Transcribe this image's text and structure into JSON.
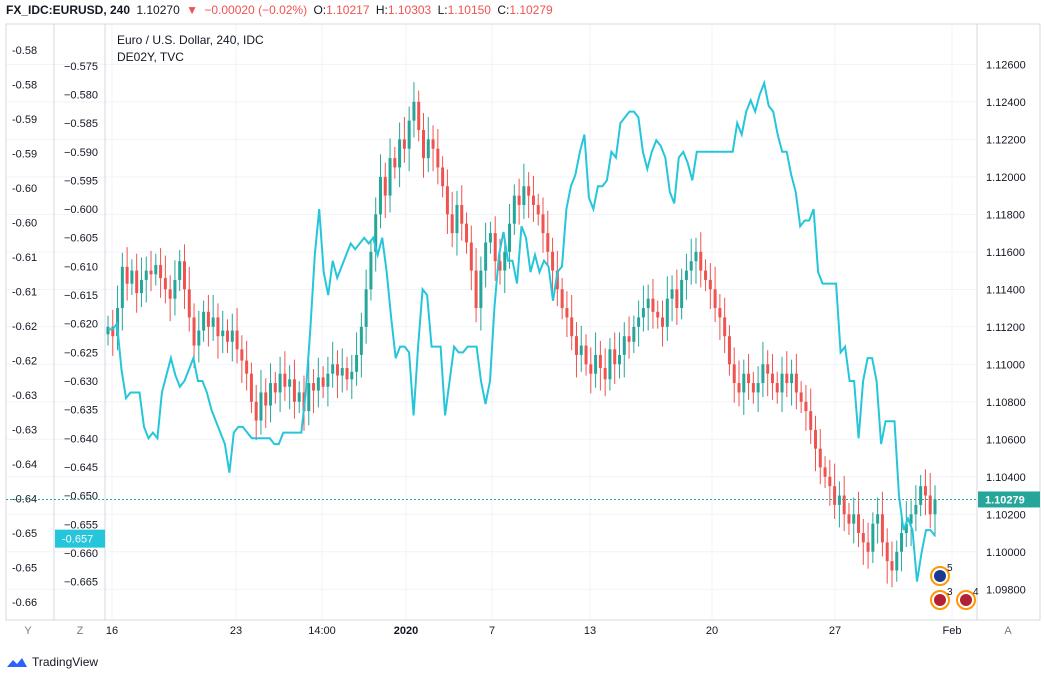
{
  "header": {
    "symbol": "FX_IDC:EURUSD, 240",
    "last": "1.10270",
    "arrow": "▼",
    "change": "−0.00020 (−0.02%)",
    "o_label": "O:",
    "o_value": "1.10217",
    "h_label": "H:",
    "h_value": "1.10303",
    "l_label": "L:",
    "l_value": "1.10150",
    "c_label": "C:",
    "c_value": "1.10279"
  },
  "legend": {
    "main": "Euro / U.S. Dollar, 240, IDC",
    "overlay": "DE02Y, TVC"
  },
  "colors": {
    "up": "#26a69a",
    "down": "#ef5350",
    "overlay": "#26c6da",
    "price_badge": "#26a69a",
    "left_badge": "#26c6da",
    "grid": "#f0f3fa"
  },
  "footer": {
    "brand": "TradingView"
  },
  "axis_buttons": {
    "y": "Y",
    "z": "Z",
    "a": "A"
  },
  "event_badges": [
    {
      "count": "5",
      "icon": "eu-flag-icon"
    },
    {
      "count": "3",
      "icon": "us-flag-icon"
    },
    {
      "count": "4",
      "icon": "us-flag-icon"
    }
  ],
  "chart_data": {
    "type": "candlestick",
    "title": "Euro / U.S. Dollar, 240, IDC",
    "right_axis": {
      "ticks": [
        "1.12600",
        "1.12400",
        "1.12200",
        "1.12000",
        "1.11800",
        "1.11600",
        "1.11400",
        "1.11200",
        "1.11000",
        "1.10800",
        "1.10600",
        "1.10400",
        "1.10200",
        "1.10000",
        "1.09800"
      ],
      "range": [
        1.097,
        1.1273
      ],
      "last_price_label": "1.10279",
      "last_price": 1.10279
    },
    "left_axis_outer": {
      "ticks": [
        "-0.58",
        "-0.58",
        "-0.59",
        "-0.59",
        "-0.60",
        "-0.60",
        "-0.61",
        "-0.61",
        "-0.62",
        "-0.62",
        "-0.63",
        "-0.63",
        "-0.64",
        "-0.64",
        "-0.65",
        "-0.65",
        "-0.66"
      ]
    },
    "left_axis_inner": {
      "ticks": [
        "−0.575",
        "−0.580",
        "−0.585",
        "−0.590",
        "−0.595",
        "−0.600",
        "−0.605",
        "−0.610",
        "−0.615",
        "−0.620",
        "−0.625",
        "−0.630",
        "−0.635",
        "−0.640",
        "−0.645",
        "−0.650",
        "−0.655",
        "−0.660",
        "−0.665"
      ],
      "range": [
        -0.6696,
        -0.5705
      ],
      "last_value_label": "-0.657",
      "last_value": -0.6575
    },
    "x_axis": {
      "labels": [
        "16",
        "23",
        "14:00",
        "2020",
        "7",
        "13",
        "20",
        "27",
        "Feb"
      ],
      "bold": [
        "2020"
      ]
    },
    "eurusd_close_4h": [
      1.112,
      1.1115,
      1.113,
      1.1152,
      1.1143,
      1.115,
      1.1138,
      1.1145,
      1.115,
      1.1148,
      1.1153,
      1.1146,
      1.114,
      1.1135,
      1.1145,
      1.1155,
      1.114,
      1.1125,
      1.111,
      1.1118,
      1.1128,
      1.112,
      1.1125,
      1.1115,
      1.1118,
      1.1112,
      1.1118,
      1.1108,
      1.1102,
      1.1095,
      1.108,
      1.107,
      1.1085,
      1.1078,
      1.109,
      1.1085,
      1.1095,
      1.1088,
      1.1092,
      1.108,
      1.1085,
      1.1075,
      1.109,
      1.1086,
      1.1093,
      1.1088,
      1.1095,
      1.11,
      1.1094,
      1.1098,
      1.1092,
      1.1096,
      1.1105,
      1.112,
      1.114,
      1.116,
      1.118,
      1.12,
      1.119,
      1.121,
      1.1205,
      1.122,
      1.1215,
      1.123,
      1.124,
      1.1225,
      1.121,
      1.122,
      1.1215,
      1.1205,
      1.1195,
      1.118,
      1.117,
      1.1185,
      1.1175,
      1.1165,
      1.115,
      1.113,
      1.115,
      1.1165,
      1.117,
      1.1155,
      1.115,
      1.116,
      1.1175,
      1.119,
      1.1185,
      1.1195,
      1.119,
      1.1185,
      1.118,
      1.117,
      1.116,
      1.115,
      1.114,
      1.113,
      1.1125,
      1.1115,
      1.1105,
      1.111,
      1.11,
      1.1095,
      1.1105,
      1.1098,
      1.1092,
      1.1108,
      1.11,
      1.1105,
      1.1115,
      1.1112,
      1.112,
      1.1125,
      1.113,
      1.1135,
      1.1128,
      1.1125,
      1.112,
      1.1135,
      1.114,
      1.113,
      1.1145,
      1.115,
      1.1155,
      1.116,
      1.115,
      1.1145,
      1.114,
      1.113,
      1.1125,
      1.1115,
      1.11,
      1.109,
      1.1085,
      1.1095,
      1.109,
      1.1085,
      1.109,
      1.11,
      1.1095,
      1.109,
      1.1085,
      1.1095,
      1.109,
      1.1095,
      1.1085,
      1.108,
      1.1075,
      1.1065,
      1.1055,
      1.1045,
      1.104,
      1.1035,
      1.1025,
      1.103,
      1.102,
      1.1015,
      1.102,
      1.101,
      1.1005,
      1.1,
      1.1015,
      1.102,
      1.1005,
      1.0995,
      1.099,
      1.1,
      1.101,
      1.1015,
      1.102,
      1.1025,
      1.1035,
      1.103,
      1.102,
      1.1028
    ],
    "de02y_yield": [
      -0.621,
      -0.621,
      -0.62,
      -0.628,
      -0.633,
      -0.632,
      -0.632,
      -0.632,
      -0.638,
      -0.64,
      -0.639,
      -0.64,
      -0.632,
      -0.629,
      -0.626,
      -0.629,
      -0.631,
      -0.63,
      -0.628,
      -0.626,
      -0.63,
      -0.63,
      -0.632,
      -0.635,
      -0.637,
      -0.639,
      -0.641,
      -0.646,
      -0.639,
      -0.638,
      -0.638,
      -0.639,
      -0.64,
      -0.64,
      -0.64,
      -0.64,
      -0.64,
      -0.641,
      -0.641,
      -0.639,
      -0.639,
      -0.639,
      -0.639,
      -0.639,
      -0.632,
      -0.621,
      -0.608,
      -0.6,
      -0.611,
      -0.615,
      -0.609,
      -0.612,
      -0.61,
      -0.608,
      -0.606,
      -0.607,
      -0.606,
      -0.605,
      -0.606,
      -0.605,
      -0.608,
      -0.605,
      -0.611,
      -0.619,
      -0.626,
      -0.624,
      -0.624,
      -0.625,
      -0.636,
      -0.624,
      -0.614,
      -0.615,
      -0.624,
      -0.624,
      -0.624,
      -0.636,
      -0.63,
      -0.624,
      -0.625,
      -0.625,
      -0.624,
      -0.624,
      -0.624,
      -0.63,
      -0.634,
      -0.63,
      -0.617,
      -0.608,
      -0.604,
      -0.609,
      -0.609,
      -0.613,
      -0.603,
      -0.605,
      -0.611,
      -0.608,
      -0.611,
      -0.609,
      -0.61,
      -0.616,
      -0.611,
      -0.61,
      -0.6,
      -0.596,
      -0.594,
      -0.59,
      -0.587,
      -0.598,
      -0.6,
      -0.596,
      -0.596,
      -0.595,
      -0.59,
      -0.591,
      -0.585,
      -0.584,
      -0.583,
      -0.583,
      -0.584,
      -0.59,
      -0.593,
      -0.59,
      -0.588,
      -0.589,
      -0.591,
      -0.597,
      -0.599,
      -0.591,
      -0.59,
      -0.592,
      -0.595,
      -0.59,
      -0.59,
      -0.59,
      -0.59,
      -0.59,
      -0.59,
      -0.59,
      -0.59,
      -0.59,
      -0.585,
      -0.587,
      -0.583,
      -0.581,
      -0.583,
      -0.58,
      -0.578,
      -0.582,
      -0.583,
      -0.587,
      -0.59,
      -0.59,
      -0.594,
      -0.597,
      -0.603,
      -0.602,
      -0.602,
      -0.6,
      -0.611,
      -0.613,
      -0.613,
      -0.613,
      -0.613,
      -0.625,
      -0.624,
      -0.63,
      -0.63,
      -0.64,
      -0.63,
      -0.626,
      -0.626,
      -0.63,
      -0.641,
      -0.637,
      -0.637,
      -0.637,
      -0.65,
      -0.656,
      -0.654,
      -0.656,
      -0.665,
      -0.66,
      -0.656,
      -0.656,
      -0.657
    ]
  }
}
